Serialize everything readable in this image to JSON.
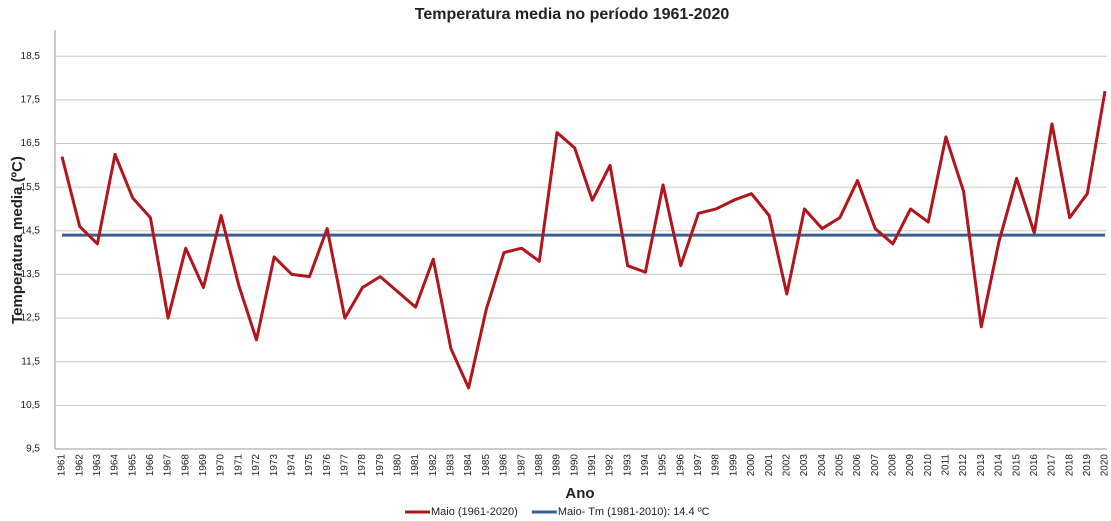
{
  "chart_data": {
    "type": "line",
    "title": "Temperatura media no período 1961-2020",
    "x_label": "Ano",
    "y_label": "Temperatura media (ºC)",
    "categories": [
      "1961",
      "1962",
      "1963",
      "1964",
      "1965",
      "1966",
      "1967",
      "1968",
      "1969",
      "1970",
      "1971",
      "1972",
      "1973",
      "1974",
      "1975",
      "1976",
      "1977",
      "1978",
      "1979",
      "1980",
      "1981",
      "1982",
      "1983",
      "1984",
      "1985",
      "1986",
      "1987",
      "1988",
      "1989",
      "1990",
      "1991",
      "1992",
      "1993",
      "1994",
      "1995",
      "1996",
      "1997",
      "1998",
      "1999",
      "2000",
      "2001",
      "2002",
      "2003",
      "2004",
      "2005",
      "2006",
      "2007",
      "2008",
      "2009",
      "2010",
      "2011",
      "2012",
      "2013",
      "2014",
      "2015",
      "2016",
      "2017",
      "2018",
      "2019",
      "2020"
    ],
    "series": [
      {
        "name": "Maio (1961-2020)",
        "color": "#b0161c",
        "values": [
          16.2,
          14.6,
          14.2,
          16.25,
          15.25,
          14.8,
          12.5,
          14.1,
          13.2,
          14.85,
          13.25,
          12.0,
          13.9,
          13.5,
          13.45,
          14.55,
          12.5,
          13.2,
          13.45,
          13.1,
          12.75,
          13.85,
          11.8,
          10.9,
          12.7,
          14.0,
          14.1,
          13.8,
          16.75,
          16.4,
          15.2,
          16.0,
          13.7,
          13.55,
          15.55,
          13.7,
          14.9,
          15.0,
          15.2,
          15.35,
          14.85,
          13.05,
          15.0,
          14.55,
          14.8,
          15.65,
          14.55,
          14.2,
          15.0,
          14.7,
          16.65,
          15.4,
          12.3,
          14.25,
          15.7,
          14.45,
          16.95,
          14.8,
          15.35,
          17.7
        ]
      },
      {
        "name": "Maio- Tm (1981-2010): 14.4 ºC",
        "color": "#3a5f93",
        "values": [
          14.4,
          14.4,
          14.4,
          14.4,
          14.4,
          14.4,
          14.4,
          14.4,
          14.4,
          14.4,
          14.4,
          14.4,
          14.4,
          14.4,
          14.4,
          14.4,
          14.4,
          14.4,
          14.4,
          14.4,
          14.4,
          14.4,
          14.4,
          14.4,
          14.4,
          14.4,
          14.4,
          14.4,
          14.4,
          14.4,
          14.4,
          14.4,
          14.4,
          14.4,
          14.4,
          14.4,
          14.4,
          14.4,
          14.4,
          14.4,
          14.4,
          14.4,
          14.4,
          14.4,
          14.4,
          14.4,
          14.4,
          14.4,
          14.4,
          14.4,
          14.4,
          14.4,
          14.4,
          14.4,
          14.4,
          14.4,
          14.4,
          14.4,
          14.4,
          14.4
        ]
      }
    ],
    "ylim": [
      9.5,
      19.1
    ],
    "yticks": [
      {
        "value": 9.5,
        "label": "9,5"
      },
      {
        "value": 10.5,
        "label": "10,5"
      },
      {
        "value": 11.5,
        "label": "11,5"
      },
      {
        "value": 12.5,
        "label": "12,5"
      },
      {
        "value": 13.5,
        "label": "13,5"
      },
      {
        "value": 14.5,
        "label": "14,5"
      },
      {
        "value": 15.5,
        "label": "15,5"
      },
      {
        "value": 16.5,
        "label": "16,5"
      },
      {
        "value": 17.5,
        "label": "17,5"
      },
      {
        "value": 18.5,
        "label": "18,5"
      }
    ],
    "grid": true,
    "legend": "bottom"
  }
}
